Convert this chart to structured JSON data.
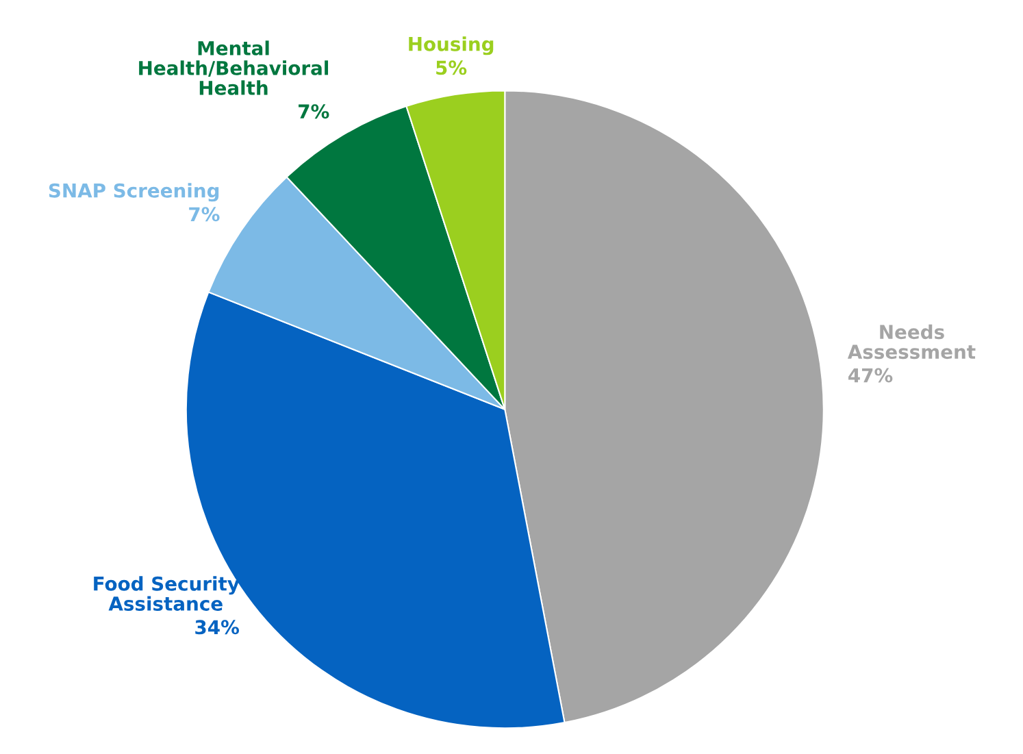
{
  "chart_data": {
    "type": "pie",
    "categories": [
      "Needs Assessment",
      "Food Security Assistance",
      "SNAP Screening",
      "Mental Health/Behavioral Health",
      "Housing"
    ],
    "values": [
      47,
      34,
      7,
      7,
      5
    ],
    "colors": [
      "#a5a5a5",
      "#0563c1",
      "#7cbae6",
      "#00773f",
      "#9bcf1f"
    ],
    "value_labels": [
      "47%",
      "34%",
      "7%",
      "7%",
      "5%"
    ]
  }
}
